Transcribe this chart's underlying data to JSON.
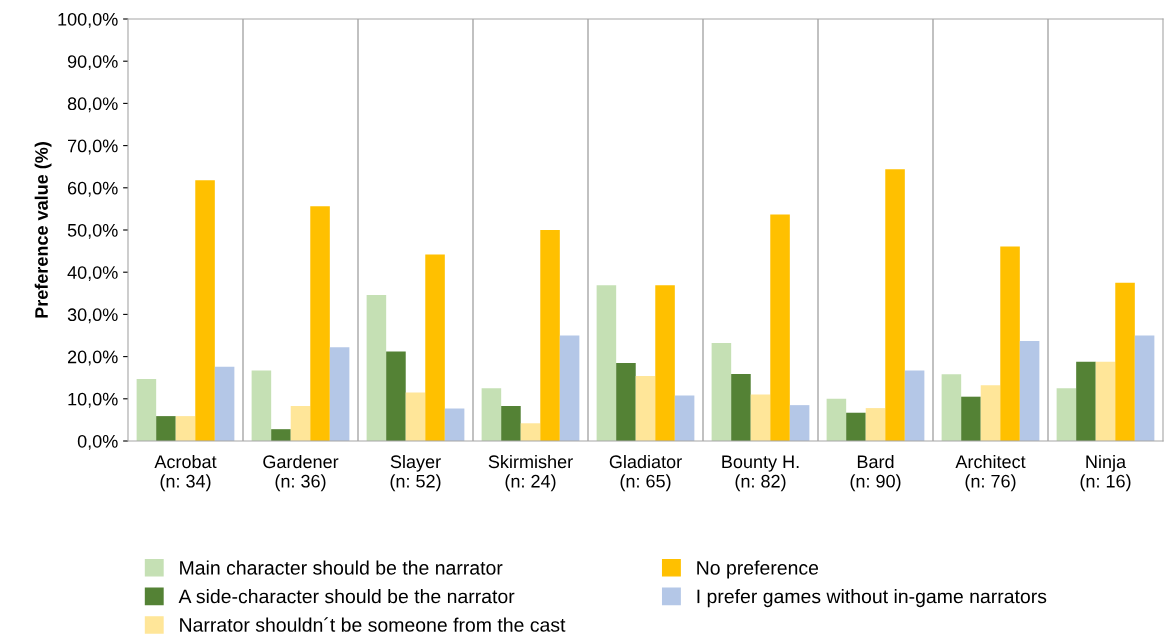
{
  "chart_data": {
    "type": "bar",
    "ylabel": "Preference value (%)",
    "categories": [
      "Acrobat\n(n: 34)",
      "Gardener\n(n: 36)",
      "Slayer\n(n: 52)",
      "Skirmisher\n(n: 24)",
      "Gladiator\n(n: 65)",
      "Bounty H.\n(n: 82)",
      "Bard\n(n: 90)",
      "Architect\n(n: 76)",
      "Ninja\n(n: 16)"
    ],
    "series": [
      {
        "name": "Main character should be the narrator",
        "color": "#c5e0b4",
        "values": [
          14.7,
          16.7,
          34.6,
          12.5,
          36.9,
          23.2,
          10.0,
          15.8,
          12.5
        ]
      },
      {
        "name": "A side-character should be the narrator",
        "color": "#548235",
        "values": [
          5.9,
          2.8,
          21.2,
          8.3,
          18.5,
          15.9,
          6.7,
          10.5,
          18.8
        ]
      },
      {
        "name": "Narrator shouldn´t be someone from the cast",
        "color": "#ffe699",
        "values": [
          5.9,
          8.3,
          11.5,
          4.2,
          15.4,
          11.0,
          7.8,
          13.2,
          18.8
        ]
      },
      {
        "name": "No preference",
        "color": "#ffc000",
        "values": [
          61.8,
          55.6,
          44.2,
          50.0,
          36.9,
          53.7,
          64.4,
          46.1,
          37.5
        ]
      },
      {
        "name": "I prefer games without in-game narrators",
        "color": "#b4c7e7",
        "values": [
          17.6,
          22.2,
          7.7,
          25.0,
          10.8,
          8.5,
          16.7,
          23.7,
          25.0
        ]
      }
    ],
    "ylim": [
      0,
      100
    ],
    "yticks": [
      {
        "value": 0,
        "label": "0,0%"
      },
      {
        "value": 10,
        "label": "10,0%"
      },
      {
        "value": 20,
        "label": "20,0%"
      },
      {
        "value": 30,
        "label": "30,0%"
      },
      {
        "value": 40,
        "label": "40,0%"
      },
      {
        "value": 50,
        "label": "50,0%"
      },
      {
        "value": 60,
        "label": "60,0%"
      },
      {
        "value": 70,
        "label": "70,0%"
      },
      {
        "value": 80,
        "label": "80,0%"
      },
      {
        "value": 90,
        "label": "90,0%"
      },
      {
        "value": 100,
        "label": "100,0%"
      }
    ],
    "grid": "x",
    "legend": "bottom"
  }
}
